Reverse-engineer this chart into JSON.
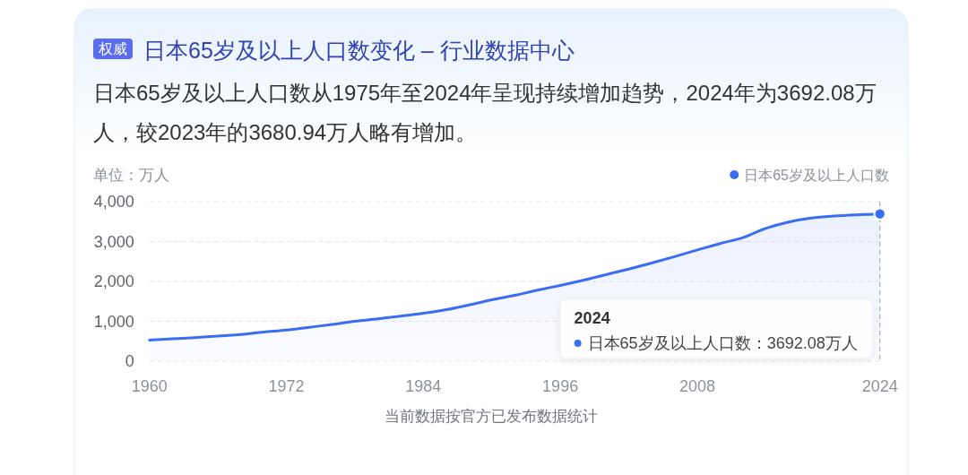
{
  "chart_data": {
    "type": "area",
    "title": "日本65岁及以上人口数变化 – 行业数据中心",
    "subtitle": "日本65岁及以上人口数从1975年至2024年呈现持续增加趋势，2024年为3692.08万人，较2023年的3680.94万人略有增加。",
    "ylabel": "单位：万人",
    "annotations": [
      "权威",
      "当前数据按官方已发布数据统计",
      "2024",
      "日本65岁及以上人口数：3692.08万人"
    ],
    "x": [
      1960,
      1962,
      1964,
      1966,
      1968,
      1970,
      1972,
      1974,
      1976,
      1978,
      1980,
      1982,
      1984,
      1986,
      1988,
      1990,
      1992,
      1994,
      1996,
      1998,
      2000,
      2002,
      2004,
      2006,
      2008,
      2010,
      2012,
      2014,
      2016,
      2018,
      2020,
      2022,
      2023,
      2024
    ],
    "series": [
      {
        "name": "日本65岁及以上人口数",
        "color": "#3a6cf4",
        "values": [
          530,
          560,
          590,
          630,
          670,
          730,
          780,
          850,
          920,
          1000,
          1060,
          1130,
          1200,
          1290,
          1410,
          1540,
          1650,
          1780,
          1900,
          2030,
          2170,
          2310,
          2460,
          2620,
          2790,
          2950,
          3100,
          3330,
          3490,
          3590,
          3640,
          3670,
          3680.94,
          3692.08
        ]
      },
      {
        "type": "scatter",
        "color": "#3a6cf4",
        "marker": "circle",
        "x": [
          2024
        ],
        "values": [
          3692.08
        ]
      }
    ],
    "xlim": [
      1960,
      2024
    ],
    "xticks": [
      1960,
      1972,
      1984,
      1996,
      2008,
      2024
    ],
    "ylim": [
      0,
      4000
    ],
    "yticks": [
      0,
      {
        "value": 1000,
        "label": "1,000"
      },
      {
        "value": 2000,
        "label": "2,000"
      },
      {
        "value": 3000,
        "label": "3,000"
      },
      {
        "value": 4000,
        "label": "4,000"
      }
    ],
    "grid": "y",
    "legend": "top right",
    "ref_lines": [
      {
        "axis": "x",
        "value": 2024,
        "color": "#9a9ea6",
        "line_style": "dashed"
      }
    ]
  }
}
